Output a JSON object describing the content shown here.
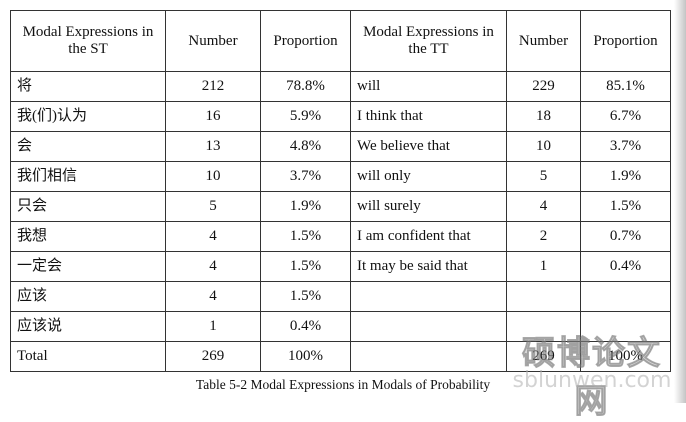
{
  "table": {
    "headers": [
      "Modal Expressions in the ST",
      "Number",
      "Proportion",
      "Modal Expressions in the TT",
      "Number",
      "Proportion"
    ],
    "rows": [
      [
        "将",
        "212",
        "78.8%",
        "will",
        "229",
        "85.1%"
      ],
      [
        "我(们)认为",
        "16",
        "5.9%",
        "I think that",
        "18",
        "6.7%"
      ],
      [
        "会",
        "13",
        "4.8%",
        "We believe that",
        "10",
        "3.7%"
      ],
      [
        "我们相信",
        "10",
        "3.7%",
        "will only",
        "5",
        "1.9%"
      ],
      [
        "只会",
        "5",
        "1.9%",
        "will surely",
        "4",
        "1.5%"
      ],
      [
        "我想",
        "4",
        "1.5%",
        "I am confident that",
        "2",
        "0.7%"
      ],
      [
        "一定会",
        "4",
        "1.5%",
        "It may be said that",
        "1",
        "0.4%"
      ],
      [
        "应该",
        "4",
        "1.5%",
        "",
        "",
        ""
      ],
      [
        "应该说",
        "1",
        "0.4%",
        "",
        "",
        ""
      ],
      [
        "Total",
        "269",
        "100%",
        "",
        "269",
        "100%"
      ]
    ]
  },
  "caption": "Table 5-2 Modal Expressions in Modals of Probability",
  "watermark": {
    "text_cn": "硕博论文网",
    "url": "sblunwen.com"
  }
}
